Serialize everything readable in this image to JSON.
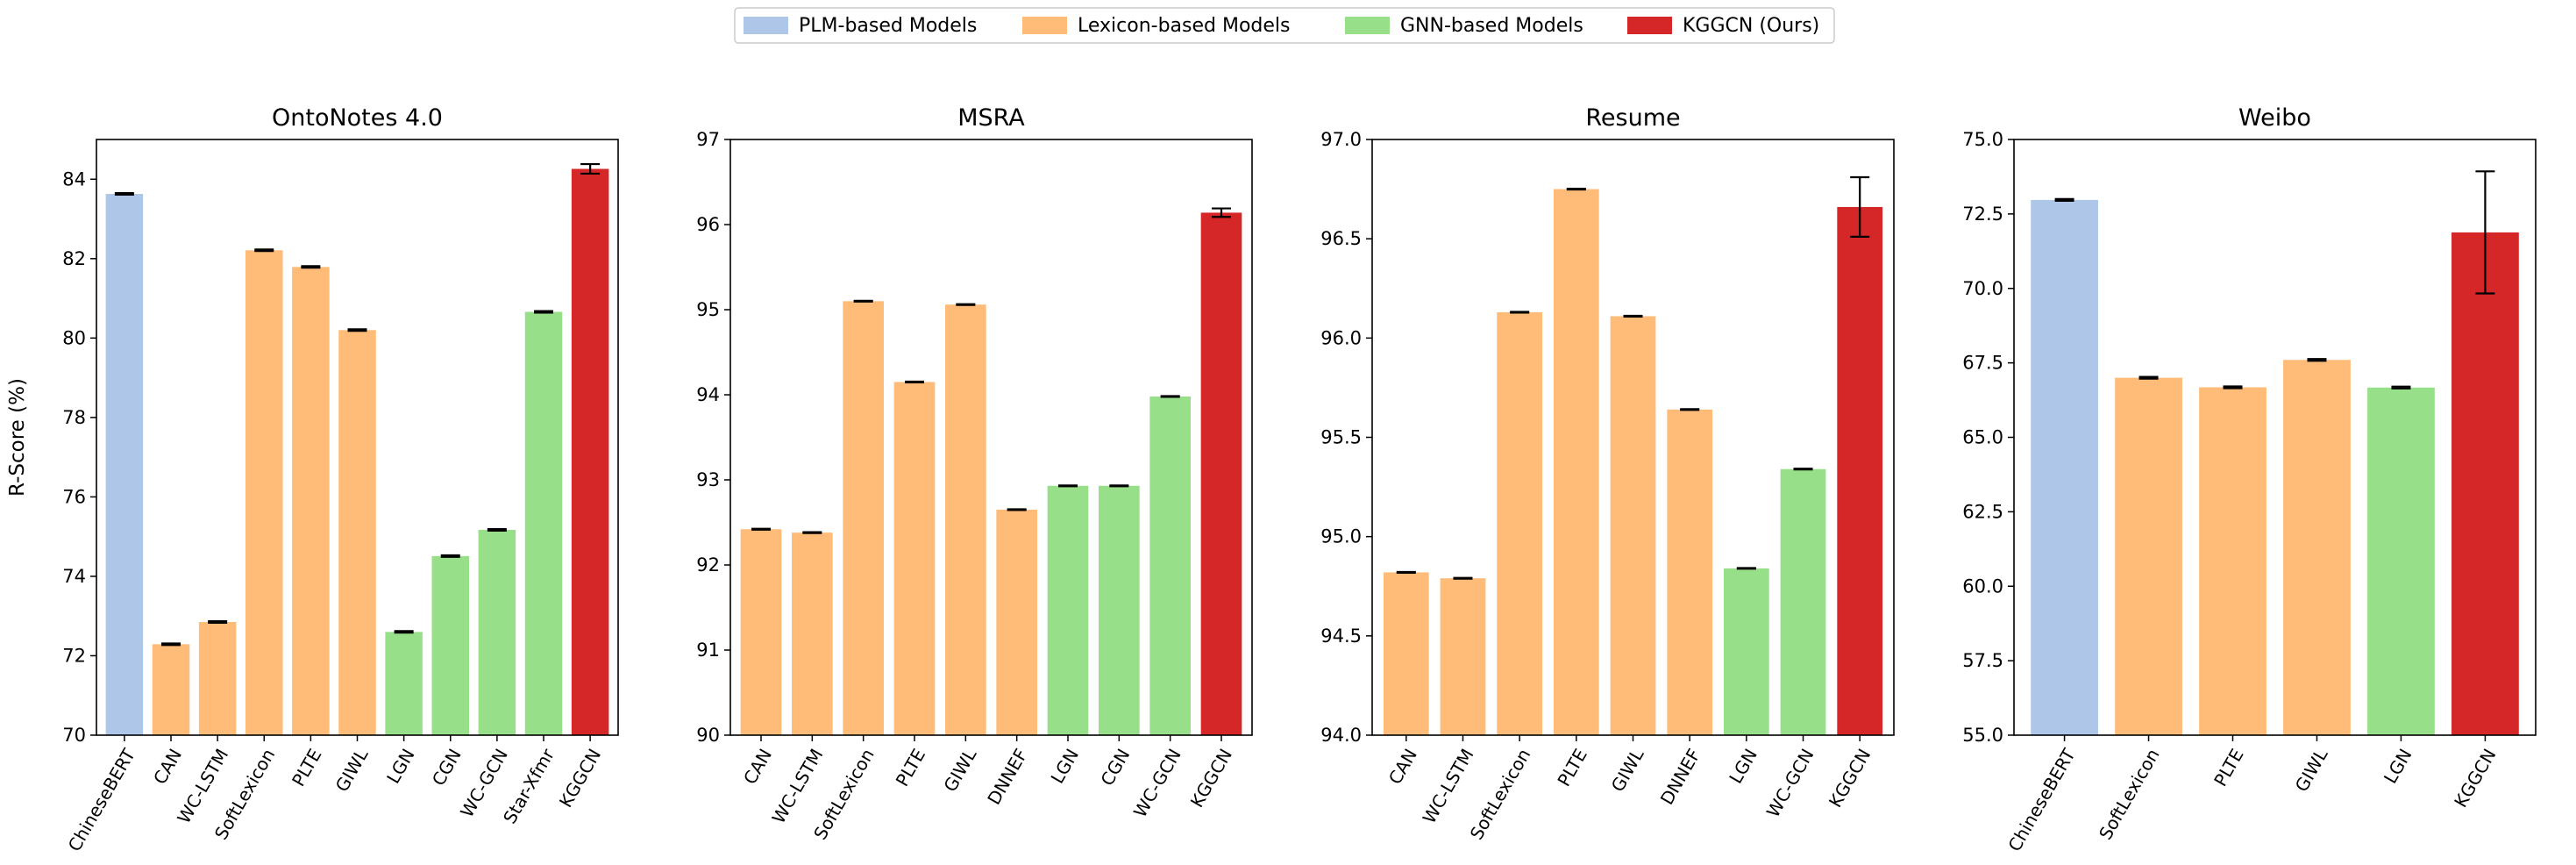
{
  "legend": [
    {
      "label": "PLM-based Models",
      "color": "#aec7e8"
    },
    {
      "label": "Lexicon-based Models",
      "color": "#ffbb78"
    },
    {
      "label": "GNN-based Models",
      "color": "#98df8a"
    },
    {
      "label": "KGGCN (Ours)",
      "color": "#d62728"
    }
  ],
  "ylabel": "R-Score (%)",
  "chart_data": [
    {
      "type": "bar",
      "title": "OntoNotes 4.0",
      "categories": [
        "ChineseBERT",
        "CAN",
        "WC-LSTM",
        "SoftLexicon",
        "PLTE",
        "GIWL",
        "LGN",
        "CGN",
        "WC-GCN",
        "Star-Xfmr",
        "KGGCN"
      ],
      "values": [
        83.63,
        72.29,
        72.85,
        82.21,
        81.79,
        80.2,
        72.6,
        74.51,
        75.17,
        80.66,
        84.26
      ],
      "errors": [
        0.02,
        0.02,
        0.02,
        0.02,
        0.02,
        0.02,
        0.02,
        0.02,
        0.02,
        0.02,
        0.12
      ],
      "groups": [
        "plm",
        "lex",
        "lex",
        "lex",
        "lex",
        "lex",
        "gnn",
        "gnn",
        "gnn",
        "gnn",
        "ours"
      ],
      "ylim": [
        70,
        85
      ],
      "yticks": [
        70,
        72,
        74,
        76,
        78,
        80,
        82,
        84
      ],
      "ytick_labels": [
        "70",
        "72",
        "74",
        "76",
        "78",
        "80",
        "82",
        "84"
      ]
    },
    {
      "type": "bar",
      "title": "MSRA",
      "categories": [
        "CAN",
        "WC-LSTM",
        "SoftLexicon",
        "PLTE",
        "GIWL",
        "DNNEF",
        "LGN",
        "CGN",
        "WC-GCN",
        "KGGCN"
      ],
      "values": [
        92.42,
        92.38,
        95.1,
        94.15,
        95.06,
        92.65,
        92.93,
        92.93,
        93.98,
        96.14
      ],
      "errors": [
        0.005,
        0.005,
        0.005,
        0.005,
        0.005,
        0.005,
        0.005,
        0.005,
        0.005,
        0.05
      ],
      "groups": [
        "lex",
        "lex",
        "lex",
        "lex",
        "lex",
        "lex",
        "gnn",
        "gnn",
        "gnn",
        "ours"
      ],
      "ylim": [
        90,
        97
      ],
      "yticks": [
        90,
        91,
        92,
        93,
        94,
        95,
        96,
        97
      ],
      "ytick_labels": [
        "90",
        "91",
        "92",
        "93",
        "94",
        "95",
        "96",
        "97"
      ]
    },
    {
      "type": "bar",
      "title": "Resume",
      "categories": [
        "CAN",
        "WC-LSTM",
        "SoftLexicon",
        "PLTE",
        "GIWL",
        "DNNEF",
        "LGN",
        "WC-GCN",
        "KGGCN"
      ],
      "values": [
        94.82,
        94.79,
        96.13,
        96.75,
        96.11,
        95.64,
        94.84,
        95.34,
        96.66
      ],
      "errors": [
        0.002,
        0.002,
        0.002,
        0.002,
        0.002,
        0.002,
        0.002,
        0.002,
        0.15
      ],
      "groups": [
        "lex",
        "lex",
        "lex",
        "lex",
        "lex",
        "lex",
        "gnn",
        "gnn",
        "ours"
      ],
      "ylim": [
        94,
        97
      ],
      "yticks": [
        94,
        94.5,
        95,
        95.5,
        96,
        96.5,
        97
      ],
      "ytick_labels": [
        "94.0",
        "94.5",
        "95.0",
        "95.5",
        "96.0",
        "96.5",
        "97.0"
      ]
    },
    {
      "type": "bar",
      "title": "Weibo",
      "categories": [
        "ChineseBERT",
        "SoftLexicon",
        "PLTE",
        "GIWL",
        "LGN",
        "KGGCN"
      ],
      "values": [
        72.97,
        67.0,
        66.68,
        67.6,
        66.67,
        71.88
      ],
      "errors": [
        0.03,
        0.03,
        0.03,
        0.03,
        0.03,
        2.05
      ],
      "groups": [
        "plm",
        "lex",
        "lex",
        "lex",
        "gnn",
        "ours"
      ],
      "ylim": [
        55,
        75
      ],
      "yticks": [
        55,
        57.5,
        60,
        62.5,
        65,
        67.5,
        70,
        72.5,
        75
      ],
      "ytick_labels": [
        "55.0",
        "57.5",
        "60.0",
        "62.5",
        "65.0",
        "67.5",
        "70.0",
        "72.5",
        "75.0"
      ]
    }
  ]
}
